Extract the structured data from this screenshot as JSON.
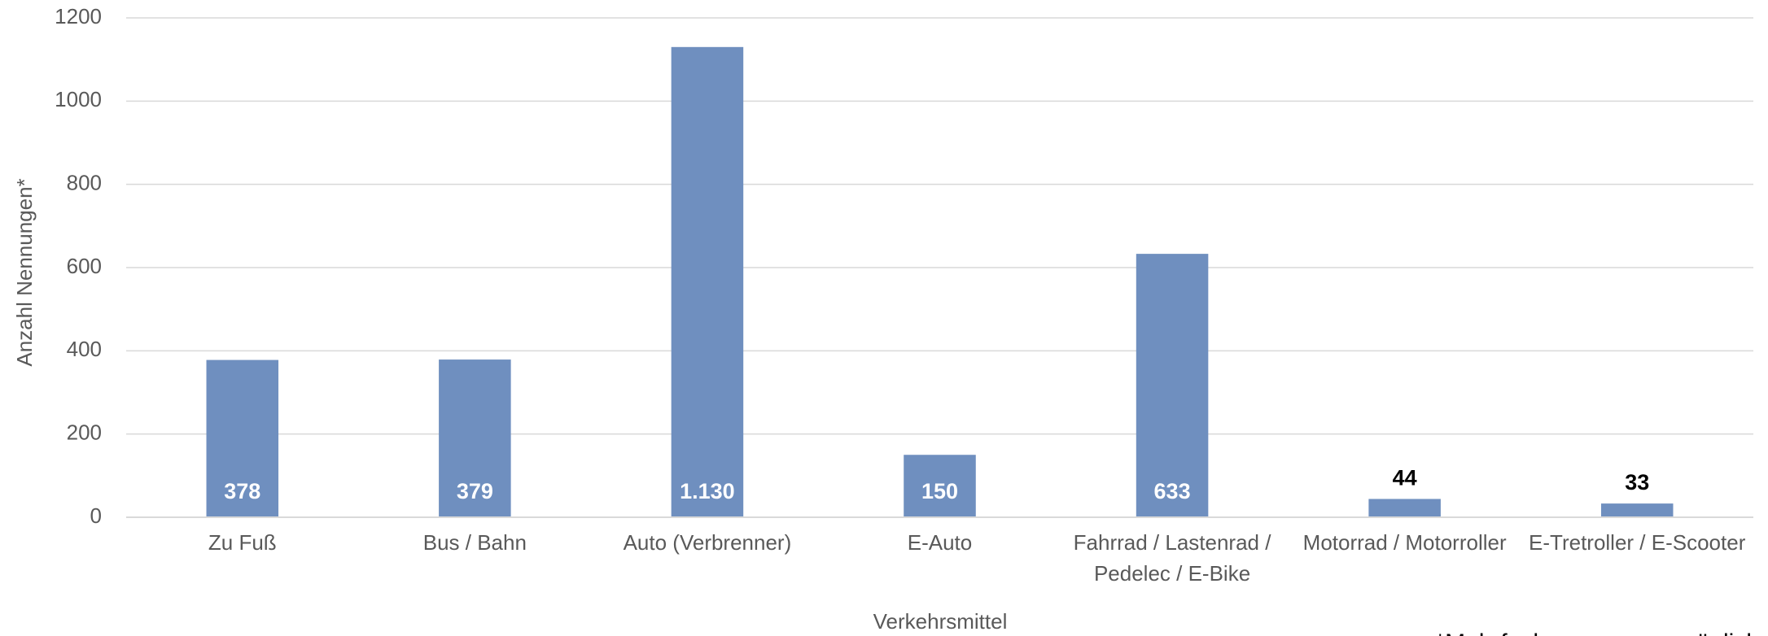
{
  "chart_data": {
    "type": "bar",
    "x_label": "Verkehrsmittel",
    "y_label": "Anzahl Nennungen*",
    "annotation": "*Mehrfachnennungen möglich",
    "categories": [
      "Zu Fuß",
      "Bus / Bahn",
      "Auto (Verbrenner)",
      "E-Auto",
      "Fahrrad / Lastenrad / Pedelec / E-Bike",
      "Motorrad / Motorroller",
      "E-Tretroller / E-Scooter"
    ],
    "values": [
      378,
      379,
      1130,
      150,
      633,
      44,
      33
    ],
    "value_labels": [
      "378",
      "379",
      "1.130",
      "150",
      "633",
      "44",
      "33"
    ],
    "color": "#6f8fbf",
    "ylim": [
      0,
      1200
    ],
    "yticks": [
      0,
      200,
      400,
      600,
      800,
      1000,
      1200
    ],
    "grid": true
  }
}
